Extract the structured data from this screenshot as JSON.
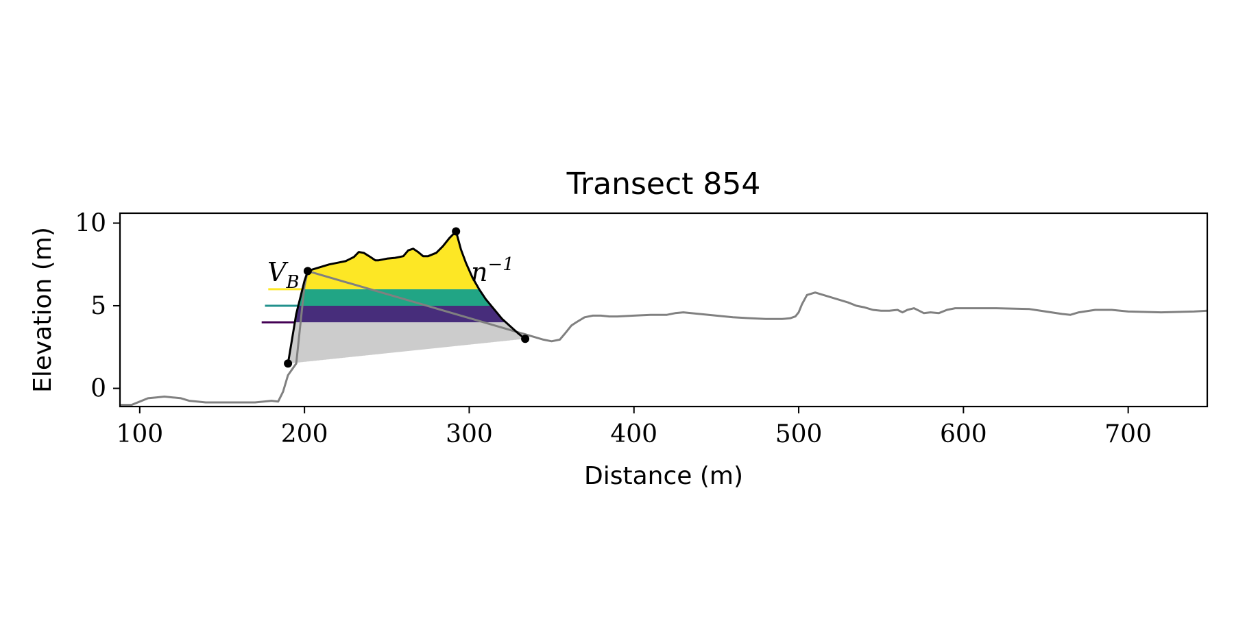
{
  "chart_data": {
    "type": "line",
    "title": "Transect 854",
    "xlabel": "Distance (m)",
    "ylabel": "Elevation (m)",
    "xlim": [
      88,
      748
    ],
    "ylim": [
      -1.1,
      10.6
    ],
    "xticks": [
      100,
      200,
      300,
      400,
      500,
      600,
      700
    ],
    "yticks": [
      0,
      5,
      10
    ],
    "grid": false,
    "colors": {
      "profile": "#808080",
      "dune_outline": "#000000",
      "base_fill": "#cccccc",
      "band_low": "#472d7b",
      "band_mid": "#21a585",
      "band_high": "#fde725",
      "level_low": "#440154",
      "level_mid": "#21918c",
      "level_high": "#fde725"
    },
    "profile": {
      "x": [
        88,
        95,
        100,
        105,
        110,
        115,
        120,
        125,
        130,
        135,
        140,
        145,
        150,
        160,
        170,
        180,
        184,
        187,
        190,
        195,
        200,
        202,
        345,
        350,
        355,
        358,
        362,
        365,
        370,
        375,
        380,
        385,
        390,
        400,
        410,
        420,
        425,
        430,
        440,
        450,
        460,
        470,
        480,
        490,
        495,
        498,
        500,
        502,
        505,
        510,
        520,
        530,
        535,
        540,
        545,
        550,
        555,
        560,
        563,
        566,
        570,
        573,
        576,
        580,
        585,
        590,
        595,
        600,
        620,
        640,
        660,
        665,
        670,
        680,
        690,
        700,
        720,
        740,
        748
      ],
      "y": [
        -1.0,
        -1.0,
        -0.8,
        -0.6,
        -0.55,
        -0.5,
        -0.55,
        -0.6,
        -0.75,
        -0.8,
        -0.85,
        -0.85,
        -0.85,
        -0.85,
        -0.85,
        -0.75,
        -0.8,
        -0.2,
        0.8,
        1.5,
        6.2,
        7.1,
        2.95,
        2.85,
        2.95,
        3.3,
        3.8,
        4.0,
        4.3,
        4.4,
        4.4,
        4.35,
        4.35,
        4.4,
        4.45,
        4.45,
        4.55,
        4.6,
        4.5,
        4.4,
        4.3,
        4.25,
        4.2,
        4.2,
        4.25,
        4.35,
        4.6,
        5.1,
        5.65,
        5.8,
        5.5,
        5.2,
        5.0,
        4.9,
        4.75,
        4.7,
        4.7,
        4.75,
        4.6,
        4.75,
        4.85,
        4.7,
        4.55,
        4.6,
        4.55,
        4.75,
        4.85,
        4.85,
        4.85,
        4.8,
        4.5,
        4.45,
        4.6,
        4.75,
        4.75,
        4.65,
        4.6,
        4.65,
        4.7
      ]
    },
    "dune_outline": {
      "x": [
        190,
        195,
        200,
        202,
        205,
        210,
        215,
        220,
        225,
        230,
        233,
        236,
        240,
        243,
        245,
        250,
        255,
        260,
        263,
        266,
        269,
        272,
        275,
        280,
        284,
        288,
        291,
        292,
        295,
        298,
        302,
        306,
        310,
        315,
        320,
        325,
        330,
        334
      ],
      "y": [
        1.5,
        4.5,
        6.5,
        7.1,
        7.2,
        7.35,
        7.5,
        7.6,
        7.7,
        7.95,
        8.25,
        8.2,
        7.95,
        7.75,
        7.75,
        7.85,
        7.9,
        8.0,
        8.35,
        8.45,
        8.25,
        8.0,
        8.0,
        8.2,
        8.6,
        9.1,
        9.4,
        9.5,
        8.4,
        7.6,
        6.7,
        6.0,
        5.4,
        4.8,
        4.2,
        3.75,
        3.3,
        3.0
      ]
    },
    "dune_points": [
      {
        "x": 190,
        "y": 1.5
      },
      {
        "x": 202,
        "y": 7.1
      },
      {
        "x": 292,
        "y": 9.5
      },
      {
        "x": 334,
        "y": 3.0
      }
    ],
    "levels": [
      {
        "y": 6.0,
        "x_start": 178,
        "band": "high"
      },
      {
        "y": 5.0,
        "x_start": 176,
        "band": "mid"
      },
      {
        "y": 4.0,
        "x_start": 174,
        "band": "low"
      }
    ],
    "annotation_left": "V",
    "annotation_left_sub": "B",
    "annotation_right": "n",
    "annotation_right_sup": "−1"
  }
}
